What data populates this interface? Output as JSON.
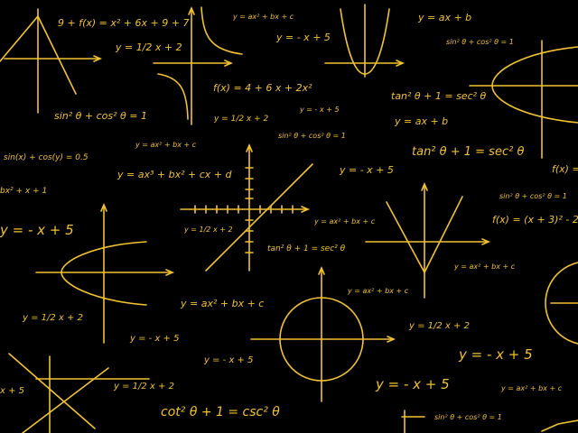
{
  "palette": {
    "background": "#000000",
    "ink": "#f2c230"
  },
  "equations": {
    "e01": "9 + f(x) = x² + 6x + 9 + 7",
    "e02": "y = ax² + bx + c",
    "e03": "y = ax + b",
    "e04": "y = - x + 5",
    "e05": "sin² θ + cos² θ = 1",
    "e06": "y = 1/2 x + 2",
    "e07": "f(x) = 4 + 6 x + 2x²",
    "e08": "tan² θ + 1 = sec² θ",
    "e09": "sin² θ + cos² θ = 1",
    "e10": "y = - x + 5",
    "e11": "y = ax + b",
    "e12": "y = 1/2 x + 2",
    "e13": "sin² θ + cos² θ = 1",
    "e14": "y = ax² + bx + c",
    "e15": "tan² θ + 1 = sec² θ",
    "e16": "sin(x) + cos(y) = 0.5",
    "e17": "y = ax³ + bx² + cx + d",
    "e18": "y = - x + 5",
    "e19": "f(x) =",
    "e20": "bx² + x + 1",
    "e21": "sin² θ + cos² θ = 1",
    "e22": "y = - x + 5",
    "e23": "y = 1/2 x + 2",
    "e24": "y = ax² + bx + c",
    "e25": "f(x) = (x + 3)² - 2",
    "e26": "tan² θ + 1 = sec² θ",
    "e27": "y = ax² + bx + c",
    "e28": "y = ax² + bx + c",
    "e29": "y = ax² + bx + c",
    "e30": "y = 1/2 x + 2",
    "e31": "y = - x + 5",
    "e32": "y = 1/2 x + 2",
    "e33": "y = - x + 5",
    "e34": "y = - x + 5",
    "e35": "y = 1/2 x + 2",
    "e36": "y = - x + 5",
    "e37": "y = ax² + bx + c",
    "e38": "x + 5",
    "e39": "cot² θ + 1 = csc² θ",
    "e40": "sin² θ + cos² θ = 1"
  }
}
